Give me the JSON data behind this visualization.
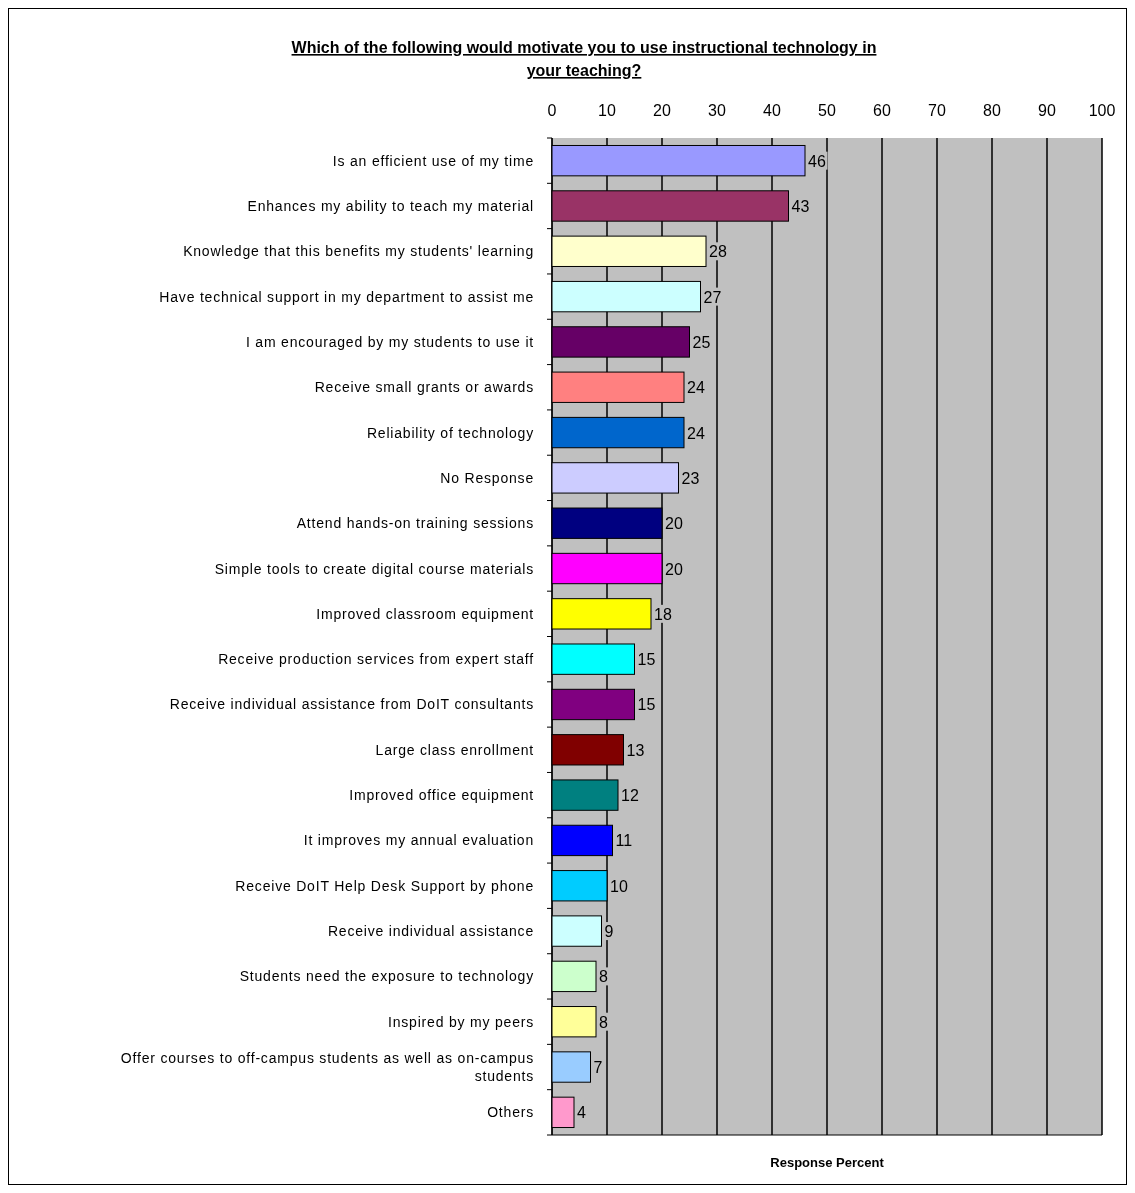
{
  "chart_data": {
    "type": "bar",
    "orientation": "horizontal",
    "title": "Which of the following would motivate you to use instructional technology in your teaching?",
    "xlabel": "Response Percent",
    "categories": [
      "Is an efficient use of my time",
      "Enhances my ability to teach my material",
      "Knowledge that this benefits my students' learning",
      "Have technical support in my department to assist me",
      "I am encouraged by my students to use it",
      "Receive small grants or awards",
      "Reliability of technology",
      "No Response",
      "Attend hands-on training sessions",
      "Simple tools to create digital course materials",
      "Improved classroom equipment",
      "Receive production services from expert staff",
      "Receive individual assistance from DoIT consultants",
      "Large class enrollment",
      "Improved office equipment",
      "It improves my annual evaluation",
      "Receive DoIT Help Desk Support by phone",
      "Receive individual assistance",
      "Students need the exposure to technology",
      "Inspired by my peers",
      "Offer courses to off-campus students as well as on-campus students",
      "Others"
    ],
    "values": [
      46,
      43,
      28,
      27,
      25,
      24,
      24,
      23,
      20,
      20,
      18,
      15,
      15,
      13,
      12,
      11,
      10,
      9,
      8,
      8,
      7,
      4
    ],
    "colors": [
      "#9999ff",
      "#993366",
      "#ffffcc",
      "#ccffff",
      "#660066",
      "#ff8080",
      "#0066cc",
      "#ccccff",
      "#000080",
      "#ff00ff",
      "#ffff00",
      "#00ffff",
      "#800080",
      "#800000",
      "#008080",
      "#0000ff",
      "#00ccff",
      "#ccffff",
      "#ccffcc",
      "#ffff99",
      "#99ccff",
      "#ff99cc"
    ],
    "xlim": [
      0,
      100
    ],
    "xticks": [
      0,
      10,
      20,
      30,
      40,
      50,
      60,
      70,
      80,
      90,
      100
    ],
    "grid": "x",
    "data_labels": true
  }
}
